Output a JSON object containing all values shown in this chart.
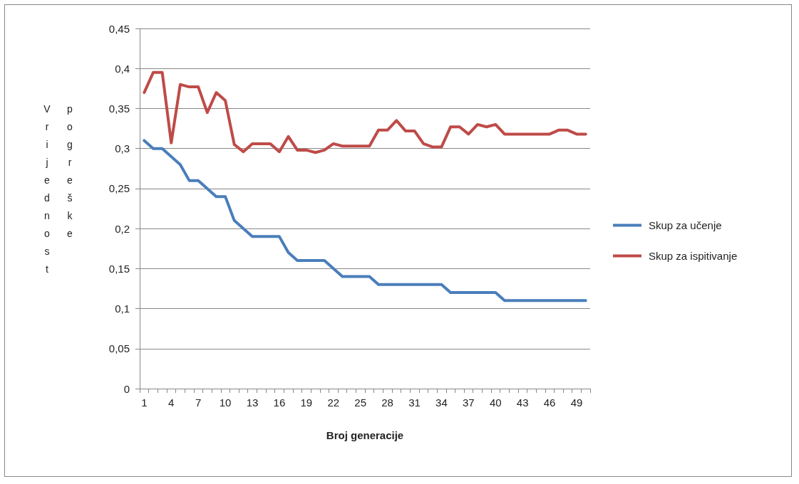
{
  "chart_data": {
    "type": "line",
    "xlabel": "Broj generacije",
    "ylabel": "Vrijednost pogreške",
    "categories": [
      "1",
      null,
      null,
      "4",
      null,
      null,
      "7",
      null,
      null,
      "10",
      null,
      null,
      "13",
      null,
      null,
      "16",
      null,
      null,
      "19",
      null,
      null,
      "22",
      null,
      null,
      "25",
      null,
      null,
      "28",
      null,
      null,
      "31",
      null,
      null,
      "34",
      null,
      null,
      "37",
      null,
      null,
      "40",
      null,
      null,
      "43",
      null,
      null,
      "46",
      null,
      null,
      "49",
      null
    ],
    "series": [
      {
        "name": "Skup za učenje",
        "color": "#4a7ebb",
        "values": [
          0.31,
          0.3,
          0.3,
          0.29,
          0.28,
          0.26,
          0.26,
          0.25,
          0.24,
          0.24,
          0.21,
          0.2,
          0.19,
          0.19,
          0.19,
          0.19,
          0.17,
          0.16,
          0.16,
          0.16,
          0.16,
          0.15,
          0.14,
          0.14,
          0.14,
          0.14,
          0.13,
          0.13,
          0.13,
          0.13,
          0.13,
          0.13,
          0.13,
          0.13,
          0.12,
          0.12,
          0.12,
          0.12,
          0.12,
          0.12,
          0.11,
          0.11,
          0.11,
          0.11,
          0.11,
          0.11,
          0.11,
          0.11,
          0.11,
          0.11
        ]
      },
      {
        "name": "Skup za ispitivanje",
        "color": "#be4b48",
        "values": [
          0.37,
          0.395,
          0.395,
          0.307,
          0.38,
          0.377,
          0.377,
          0.345,
          0.37,
          0.36,
          0.305,
          0.296,
          0.306,
          0.306,
          0.306,
          0.296,
          0.315,
          0.298,
          0.298,
          0.295,
          0.298,
          0.306,
          0.303,
          0.303,
          0.303,
          0.303,
          0.323,
          0.323,
          0.335,
          0.322,
          0.322,
          0.306,
          0.302,
          0.302,
          0.327,
          0.327,
          0.318,
          0.33,
          0.327,
          0.33,
          0.318,
          0.318,
          0.318,
          0.318,
          0.318,
          0.318,
          0.323,
          0.323,
          0.318,
          0.318
        ]
      }
    ],
    "ylim": [
      0,
      0.45
    ],
    "yticks": [
      0,
      {
        "value": 0.05,
        "label": "0,05"
      },
      {
        "value": 0.1,
        "label": "0,1"
      },
      {
        "value": 0.15,
        "label": "0,15"
      },
      {
        "value": 0.2,
        "label": "0,2"
      },
      {
        "value": 0.25,
        "label": "0,25"
      },
      {
        "value": 0.3,
        "label": "0,3"
      },
      {
        "value": 0.35,
        "label": "0,35"
      },
      {
        "value": 0.4,
        "label": "0,4"
      },
      {
        "value": 0.45,
        "label": "0,45"
      }
    ],
    "grid": "y",
    "legend": "right",
    "marker": "none",
    "line_style": "solid"
  }
}
